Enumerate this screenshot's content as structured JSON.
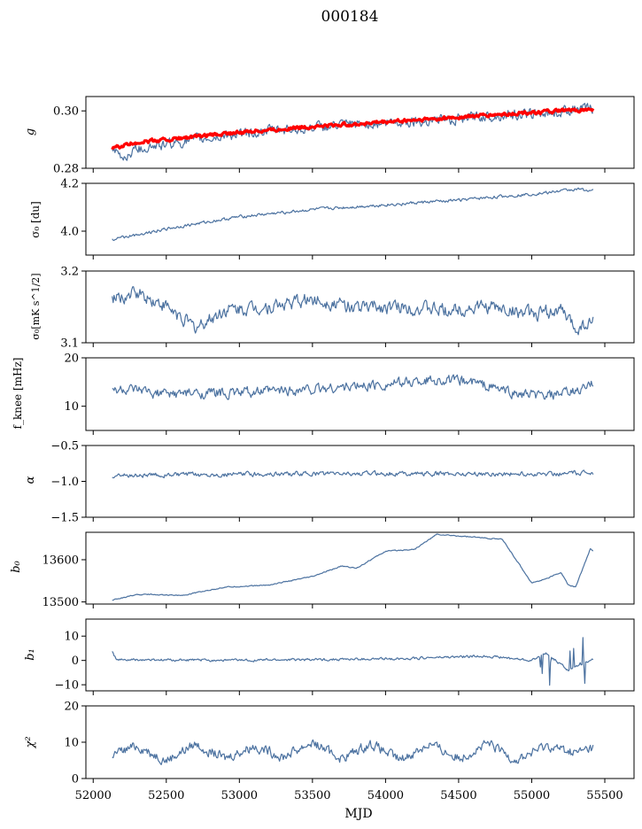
{
  "figure": {
    "title": "000184"
  },
  "chart_data": {
    "type": "line",
    "shared_x": {
      "label": "MJD",
      "range": [
        51950,
        55700
      ],
      "ticks": [
        52000,
        52500,
        53000,
        53500,
        54000,
        54500,
        55000,
        55500
      ],
      "data_range": [
        52130,
        55420
      ]
    },
    "panels": [
      {
        "id": "g",
        "ylabel": "g",
        "ylim": [
          0.28,
          0.305
        ],
        "yticks": [
          {
            "v": 0.28,
            "label": "0.28"
          },
          {
            "v": 0.3,
            "label": "0.30"
          }
        ],
        "series": [
          {
            "color": "#4c72a0",
            "width": 1.2,
            "points": [
              [
                52130,
                0.2862
              ],
              [
                52200,
                0.2835
              ],
              [
                52300,
                0.287
              ],
              [
                52500,
                0.2885
              ],
              [
                52800,
                0.2905
              ],
              [
                53000,
                0.292
              ],
              [
                53300,
                0.2935
              ],
              [
                53600,
                0.2945
              ],
              [
                53900,
                0.2955
              ],
              [
                54200,
                0.2965
              ],
              [
                54500,
                0.2975
              ],
              [
                54800,
                0.2985
              ],
              [
                55000,
                0.299
              ],
              [
                55200,
                0.2995
              ],
              [
                55300,
                0.301
              ],
              [
                55420,
                0.3005
              ]
            ],
            "noise": 0.0018
          },
          {
            "color": "#ff0000",
            "width": 3.2,
            "points": [
              [
                52130,
                0.287
              ],
              [
                52300,
                0.289
              ],
              [
                52500,
                0.29
              ],
              [
                52800,
                0.2915
              ],
              [
                53000,
                0.2925
              ],
              [
                53300,
                0.2938
              ],
              [
                53600,
                0.2948
              ],
              [
                53900,
                0.2958
              ],
              [
                54200,
                0.2968
              ],
              [
                54500,
                0.2978
              ],
              [
                54800,
                0.2988
              ],
              [
                55000,
                0.2995
              ],
              [
                55200,
                0.3
              ],
              [
                55420,
                0.3005
              ]
            ],
            "noise": 0.0006
          }
        ]
      },
      {
        "id": "sigma0-du",
        "ylabel": "σ₀ [du]",
        "ylim": [
          3.9,
          4.2
        ],
        "yticks": [
          {
            "v": 4.0,
            "label": "4.0"
          },
          {
            "v": 4.2,
            "label": "4.2"
          }
        ],
        "series": [
          {
            "color": "#4c72a0",
            "width": 1.2,
            "points": [
              [
                52130,
                3.965
              ],
              [
                52500,
                4.01
              ],
              [
                53000,
                4.06
              ],
              [
                53500,
                4.09
              ],
              [
                54000,
                4.11
              ],
              [
                54500,
                4.13
              ],
              [
                55000,
                4.155
              ],
              [
                55300,
                4.175
              ],
              [
                55420,
                4.17
              ]
            ],
            "noise": 0.006
          }
        ]
      },
      {
        "id": "sigma0-mk",
        "ylabel": "σ₀[mK s^1/2]",
        "ylim": [
          3.1,
          3.2
        ],
        "yticks": [
          {
            "v": 3.1,
            "label": "3.1"
          },
          {
            "v": 3.2,
            "label": "3.2"
          }
        ],
        "series": [
          {
            "color": "#4c72a0",
            "width": 1.2,
            "points": [
              [
                52130,
                3.16
              ],
              [
                52300,
                3.17
              ],
              [
                52500,
                3.15
              ],
              [
                52700,
                3.12
              ],
              [
                52900,
                3.145
              ],
              [
                53200,
                3.15
              ],
              [
                53500,
                3.16
              ],
              [
                53800,
                3.15
              ],
              [
                54100,
                3.15
              ],
              [
                54400,
                3.145
              ],
              [
                54700,
                3.15
              ],
              [
                55000,
                3.14
              ],
              [
                55200,
                3.145
              ],
              [
                55300,
                3.12
              ],
              [
                55420,
                3.13
              ]
            ],
            "noise": 0.009
          }
        ]
      },
      {
        "id": "fknee",
        "ylabel": "f_knee [mHz]",
        "ylim": [
          5,
          20
        ],
        "yticks": [
          {
            "v": 10,
            "label": "10"
          },
          {
            "v": 20,
            "label": "20"
          }
        ],
        "series": [
          {
            "color": "#4c72a0",
            "width": 1.2,
            "points": [
              [
                52130,
                13.5
              ],
              [
                52500,
                12.5
              ],
              [
                53000,
                12.8
              ],
              [
                53500,
                13.5
              ],
              [
                54000,
                14.5
              ],
              [
                54300,
                15.5
              ],
              [
                54600,
                15.0
              ],
              [
                54900,
                12.5
              ],
              [
                55100,
                12.0
              ],
              [
                55300,
                13.0
              ],
              [
                55420,
                14.5
              ]
            ],
            "noise": 1.0
          }
        ]
      },
      {
        "id": "alpha",
        "ylabel": "α",
        "ylim": [
          -1.5,
          -0.5
        ],
        "yticks": [
          {
            "v": -1.5,
            "label": "−1.5"
          },
          {
            "v": -1.0,
            "label": "−1.0"
          },
          {
            "v": -0.5,
            "label": "−0.5"
          }
        ],
        "series": [
          {
            "color": "#4c72a0",
            "width": 1.2,
            "points": [
              [
                52130,
                -0.92
              ],
              [
                53000,
                -0.9
              ],
              [
                54000,
                -0.89
              ],
              [
                55000,
                -0.9
              ],
              [
                55420,
                -0.88
              ]
            ],
            "noise": 0.03
          }
        ]
      },
      {
        "id": "b0",
        "ylabel": "b₀",
        "ylim": [
          13495,
          13665
        ],
        "yticks": [
          {
            "v": 13500,
            "label": "13500"
          },
          {
            "v": 13600,
            "label": "13600"
          }
        ],
        "series": [
          {
            "color": "#4c72a0",
            "width": 1.2,
            "points": [
              [
                52130,
                13505
              ],
              [
                52300,
                13517
              ],
              [
                52400,
                13518
              ],
              [
                52600,
                13515
              ],
              [
                52900,
                13535
              ],
              [
                53200,
                13540
              ],
              [
                53500,
                13560
              ],
              [
                53700,
                13585
              ],
              [
                53800,
                13580
              ],
              [
                54000,
                13620
              ],
              [
                54200,
                13625
              ],
              [
                54350,
                13660
              ],
              [
                54550,
                13655
              ],
              [
                54800,
                13648
              ],
              [
                55000,
                13545
              ],
              [
                55100,
                13555
              ],
              [
                55200,
                13570
              ],
              [
                55250,
                13540
              ],
              [
                55300,
                13535
              ],
              [
                55400,
                13625
              ],
              [
                55420,
                13622
              ]
            ],
            "noise": 1.2
          }
        ]
      },
      {
        "id": "b1",
        "ylabel": "b₁",
        "ylim": [
          -12.5,
          17
        ],
        "yticks": [
          {
            "v": -10,
            "label": "−10"
          },
          {
            "v": 0,
            "label": "0"
          },
          {
            "v": 10,
            "label": "10"
          }
        ],
        "series": [
          {
            "color": "#4c72a0",
            "width": 1.2,
            "points": [
              [
                52130,
                3.5
              ],
              [
                52160,
                0.2
              ],
              [
                53000,
                0.1
              ],
              [
                54000,
                0.6
              ],
              [
                54700,
                1.8
              ],
              [
                55000,
                0.0
              ],
              [
                55100,
                3.0
              ],
              [
                55250,
                -4.0
              ],
              [
                55420,
                0.5
              ]
            ],
            "noise": 0.5
          }
        ]
      },
      {
        "id": "chi2",
        "ylabel": "χ²",
        "ylim": [
          0,
          20
        ],
        "yticks": [
          {
            "v": 0,
            "label": "0"
          },
          {
            "v": 10,
            "label": "10"
          },
          {
            "v": 20,
            "label": "20"
          }
        ],
        "series": [
          {
            "color": "#4c72a0",
            "width": 1.2,
            "points": [
              [
                52130,
                6.5
              ],
              [
                52300,
                9.0
              ],
              [
                52500,
                5.0
              ],
              [
                52700,
                9.5
              ],
              [
                52900,
                5.5
              ],
              [
                53100,
                9.0
              ],
              [
                53300,
                6.0
              ],
              [
                53500,
                10.0
              ],
              [
                53700,
                5.5
              ],
              [
                53900,
                9.5
              ],
              [
                54100,
                5.0
              ],
              [
                54300,
                9.5
              ],
              [
                54500,
                5.5
              ],
              [
                54700,
                9.5
              ],
              [
                54900,
                5.0
              ],
              [
                55100,
                9.0
              ],
              [
                55300,
                7.0
              ],
              [
                55420,
                8.5
              ]
            ],
            "noise": 1.3
          }
        ]
      }
    ]
  }
}
